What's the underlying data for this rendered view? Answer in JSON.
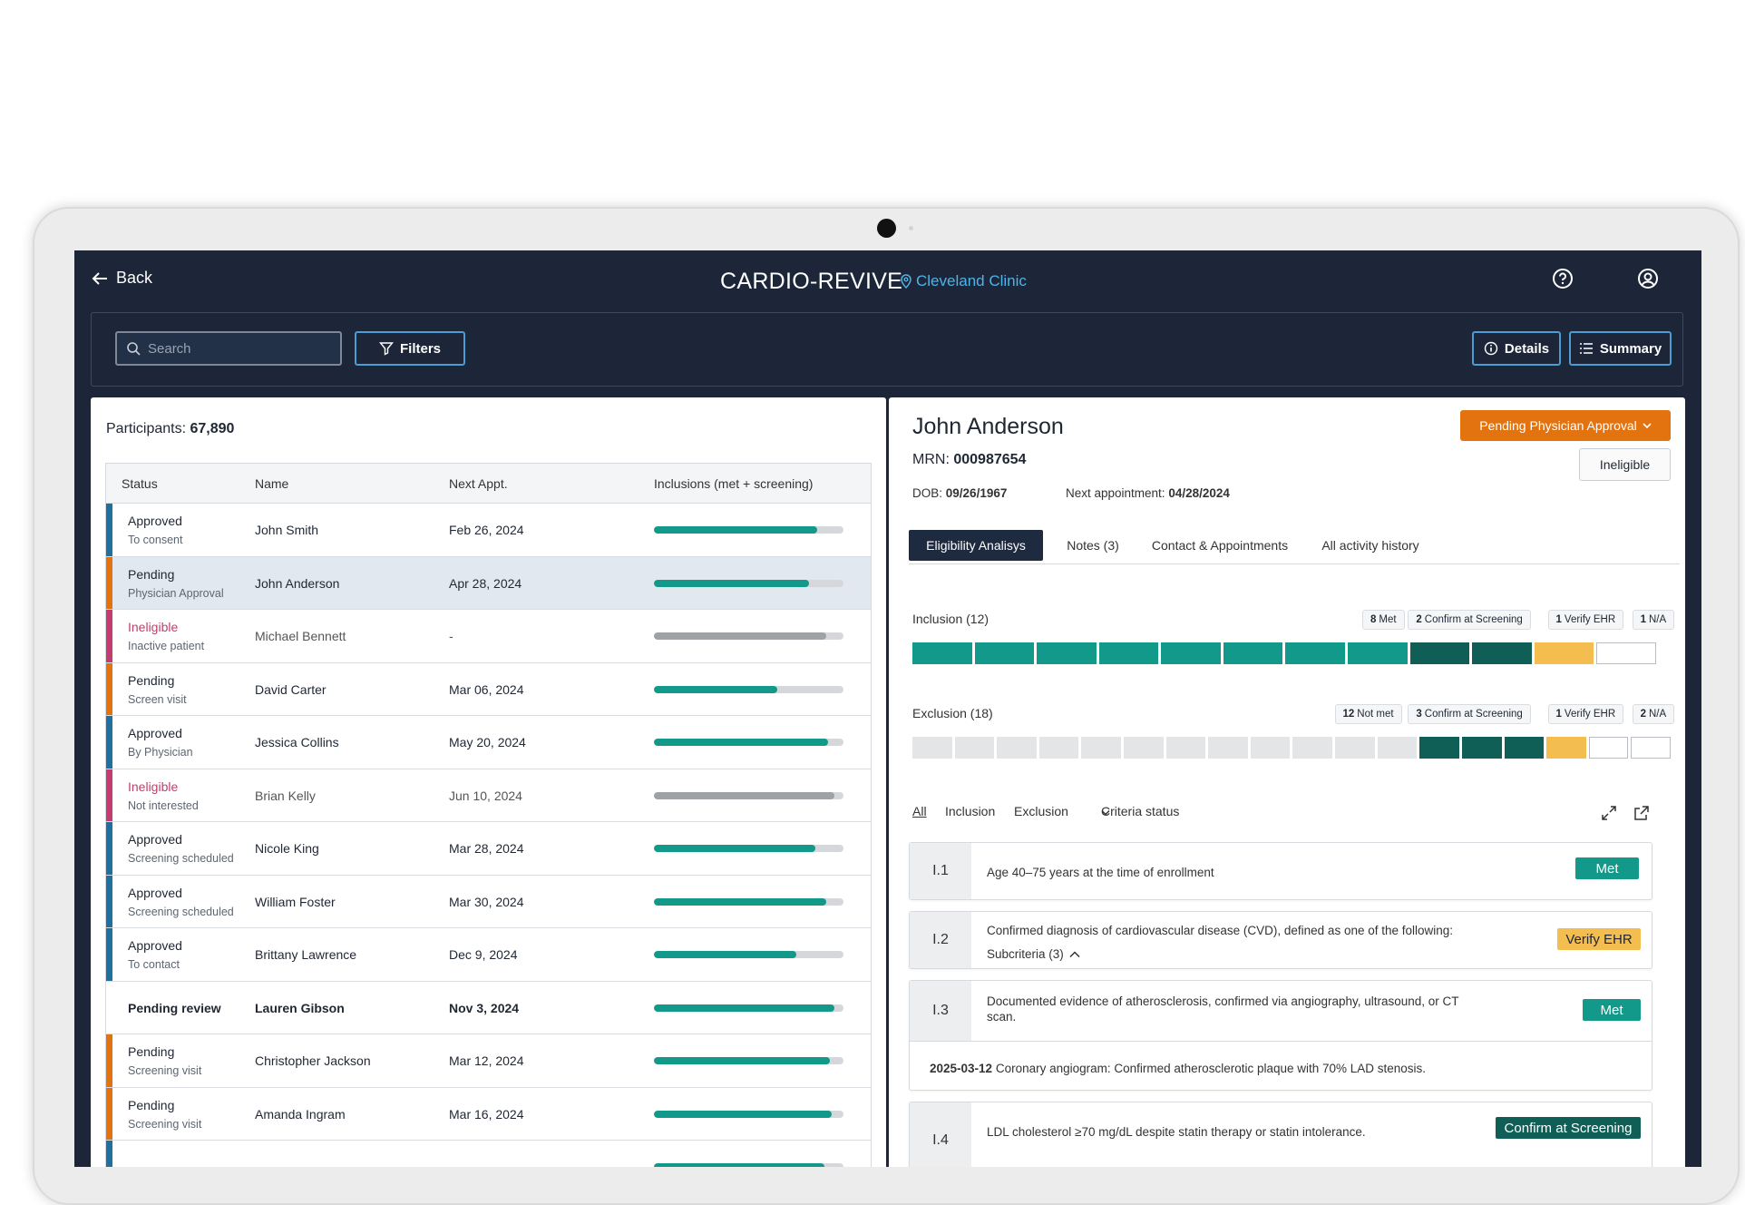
{
  "app": {
    "back_label": "Back",
    "title": "CARDIO-REVIVE",
    "location": "Cleveland Clinic"
  },
  "toolbar": {
    "search_placeholder": "Search",
    "filters_label": "Filters",
    "details_label": "Details",
    "summary_label": "Summary"
  },
  "list": {
    "participants_label": "Participants:",
    "participants_count": "67,890",
    "columns": [
      "Status",
      "Name",
      "Next Appt.",
      "Inclusions (met + screening)"
    ],
    "rows": [
      {
        "status": "Approved",
        "sub": "To consent",
        "name": "John Smith",
        "appt": "Feb 26, 2024",
        "progress": 0.86,
        "stripe": "#1f6f9f"
      },
      {
        "status": "Pending",
        "sub": "Physician Approval",
        "name": "John Anderson",
        "appt": "Apr 28, 2024",
        "progress": 0.82,
        "stripe": "#e2730e"
      },
      {
        "status": "Ineligible",
        "sub": "Inactive patient",
        "name": "Michael Bennett",
        "appt": "-",
        "progress": 0.91,
        "stripe": "#c23d6e"
      },
      {
        "status": "Pending",
        "sub": "Screen visit",
        "name": "David Carter",
        "appt": "Mar 06, 2024",
        "progress": 0.65,
        "stripe": "#e2730e"
      },
      {
        "status": "Approved",
        "sub": "By Physician",
        "name": "Jessica Collins",
        "appt": "May 20, 2024",
        "progress": 0.92,
        "stripe": "#1f6f9f"
      },
      {
        "status": "Ineligible",
        "sub": "Not interested",
        "name": "Brian Kelly",
        "appt": "Jun 10, 2024",
        "progress": 0.95,
        "stripe": "#c23d6e"
      },
      {
        "status": "Approved",
        "sub": "Screening scheduled",
        "name": "Nicole King",
        "appt": "Mar 28, 2024",
        "progress": 0.85,
        "stripe": "#1f6f9f"
      },
      {
        "status": "Approved",
        "sub": "Screening scheduled",
        "name": "William Foster",
        "appt": "Mar 30, 2024",
        "progress": 0.91,
        "stripe": "#1f6f9f"
      },
      {
        "status": "Approved",
        "sub": "To contact",
        "name": "Brittany Lawrence",
        "appt": "Dec 9, 2024",
        "progress": 0.75,
        "stripe": "#1f6f9f"
      },
      {
        "status": "Pending review",
        "sub": "",
        "name": "Lauren Gibson",
        "appt": "Nov 3, 2024",
        "progress": 0.95,
        "stripe": ""
      },
      {
        "status": "Pending",
        "sub": "Screening visit",
        "name": "Christopher Jackson",
        "appt": "Mar 12, 2024",
        "progress": 0.93,
        "stripe": "#e2730e"
      },
      {
        "status": "Pending",
        "sub": "Screening visit",
        "name": "Amanda Ingram",
        "appt": "Mar 16, 2024",
        "progress": 0.94,
        "stripe": "#e2730e"
      },
      {
        "status": "",
        "sub": "",
        "name": "",
        "appt": "",
        "progress": 0.9,
        "stripe": "#1f6f9f"
      }
    ]
  },
  "detail": {
    "name": "John Anderson",
    "mrn_label": "MRN:",
    "mrn": "000987654",
    "dob_label": "DOB:",
    "dob": "09/26/1967",
    "next_label": "Next appointment:",
    "next": "04/28/2024",
    "status_button": "Pending Physician Approval",
    "ineligible_button": "Ineligible",
    "tabs": [
      "Eligibility Analisys",
      "Notes (3)",
      "Contact & Appointments",
      "All activity history"
    ],
    "inclusion": {
      "label": "Inclusion (12)",
      "chips": [
        {
          "n": "8",
          "t": "Met"
        },
        {
          "n": "2",
          "t": "Confirm at Screening"
        },
        {
          "n": "1",
          "t": "Verify EHR"
        },
        {
          "n": "1",
          "t": "N/A"
        }
      ],
      "segments": [
        "met",
        "met",
        "met",
        "met",
        "met",
        "met",
        "met",
        "met",
        "screen",
        "screen",
        "ehr",
        "na"
      ]
    },
    "exclusion": {
      "label": "Exclusion (18)",
      "chips": [
        {
          "n": "12",
          "t": "Not met"
        },
        {
          "n": "3",
          "t": "Confirm at Screening"
        },
        {
          "n": "1",
          "t": "Verify EHR"
        },
        {
          "n": "2",
          "t": "N/A"
        }
      ],
      "segments": [
        "notmet",
        "notmet",
        "notmet",
        "notmet",
        "notmet",
        "notmet",
        "notmet",
        "notmet",
        "notmet",
        "notmet",
        "notmet",
        "notmet",
        "screen",
        "screen",
        "screen",
        "ehr",
        "na",
        "na"
      ]
    },
    "filters": {
      "all": "All",
      "inclusion": "Inclusion",
      "exclusion": "Exclusion",
      "criteria_status": "Criteria status"
    },
    "criteria": [
      {
        "idx": "I.1",
        "text": "Age 40–75 years at the time of enrollment",
        "badge": "Met"
      },
      {
        "idx": "I.2",
        "text": "Confirmed diagnosis of cardiovascular disease (CVD), defined as one of the following:",
        "subcriteria": "Subcriteria (3)",
        "badge": "Verify EHR"
      },
      {
        "idx": "I.3",
        "text": "Documented evidence of atherosclerosis, confirmed via angiography, ultrasound, or CT scan.",
        "badge": "Met",
        "evidence_date": "2025-03-12",
        "evidence_text": "Coronary angiogram: Confirmed atherosclerotic plaque with 70% LAD stenosis."
      },
      {
        "idx": "I.4",
        "text": "LDL cholesterol ≥70 mg/dL despite statin therapy or statin intolerance.",
        "badge": "Confirm at Screening"
      }
    ],
    "colors": {
      "met": "#13998a",
      "screen": "#0f5f57",
      "ehr": "#f4bd50",
      "notmet": "#e4e5e7",
      "orange": "#e2730e",
      "navy": "#1c2638"
    }
  }
}
